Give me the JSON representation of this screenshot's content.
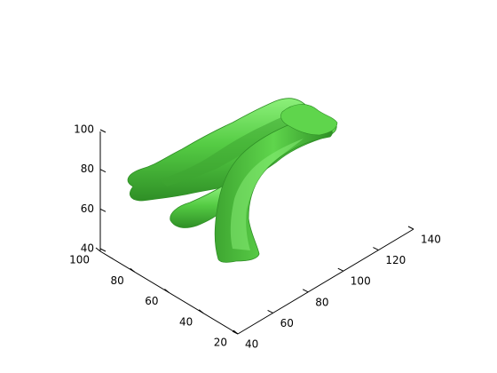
{
  "chart_data": {
    "type": "3d-surface",
    "title": "",
    "xlabel": "",
    "ylabel": "",
    "zlabel": "",
    "surface_color": "#55cc44",
    "surface_shadow_color": "#2f8f26",
    "surface_highlight_color": "#8cf07a",
    "x_axis": {
      "range": [
        40,
        140
      ],
      "ticks": [
        "40",
        "60",
        "80",
        "100",
        "120",
        "140"
      ]
    },
    "y_axis": {
      "range": [
        20,
        100
      ],
      "ticks": [
        "20",
        "40",
        "60",
        "80",
        "100"
      ]
    },
    "z_axis": {
      "range": [
        40,
        100
      ],
      "ticks": [
        "40",
        "60",
        "80",
        "100"
      ]
    },
    "grid": false
  }
}
